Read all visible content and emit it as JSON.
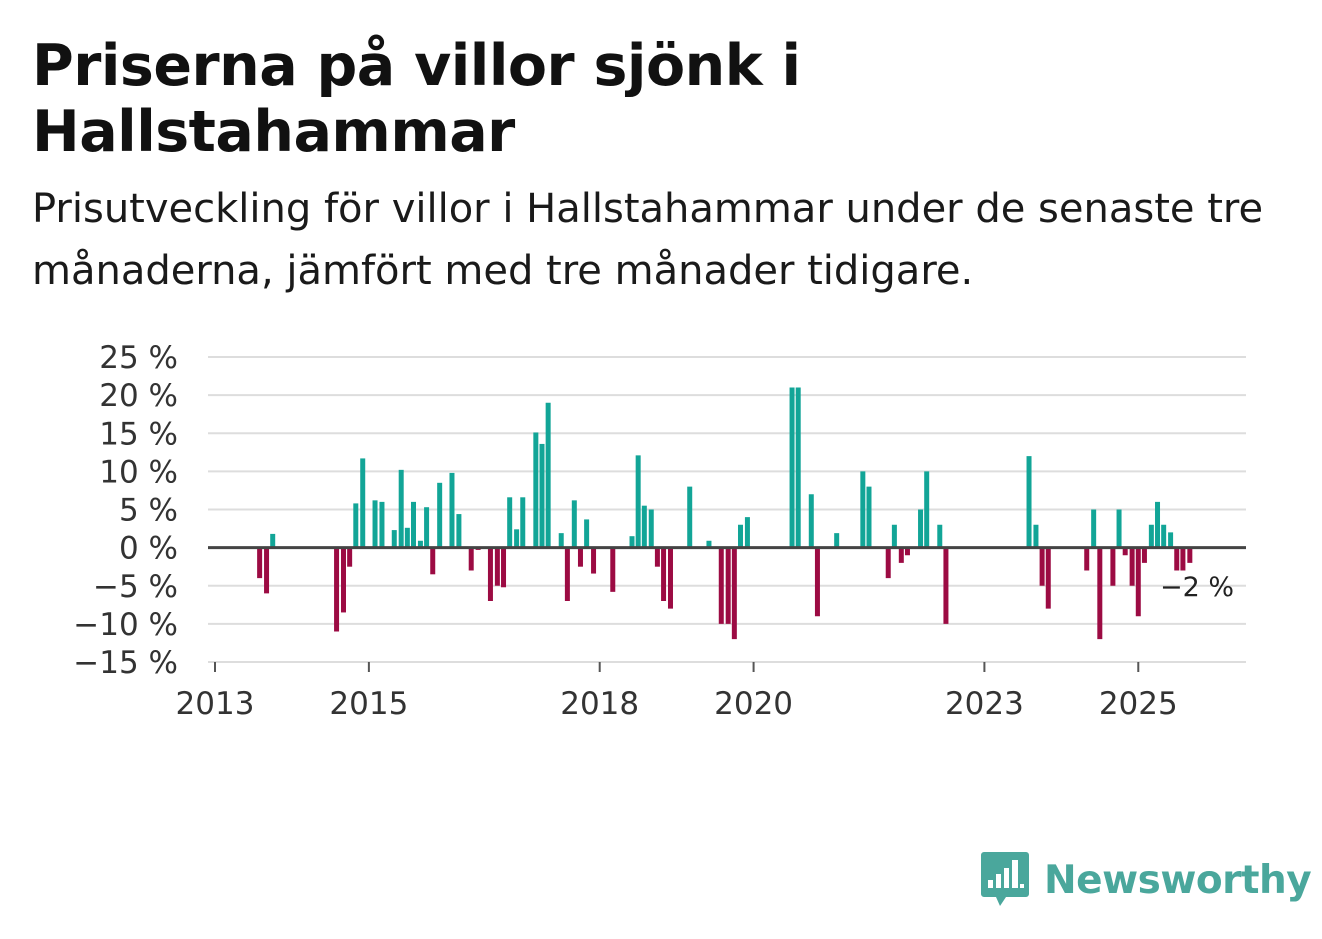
{
  "header": {
    "title": "Priserna på villor sjönk i Hallstahammar",
    "subtitle": "Prisutveckling för villor i Hallstahammar under de senaste tre månaderna, jämfört med tre månader tidigare."
  },
  "brand": {
    "name": "Newsworthy",
    "color": "#4aa79c"
  },
  "colors": {
    "positive": "#12a597",
    "negative": "#9c0b43",
    "zero_line": "#444444",
    "grid": "#dddddd"
  },
  "chart_data": {
    "type": "bar",
    "title": "Priserna på villor sjönk i Hallstahammar",
    "xlabel": "",
    "ylabel": "",
    "ylim": [
      -15,
      25
    ],
    "xlim": [
      2013,
      2026.4
    ],
    "y_ticks": [
      25,
      20,
      15,
      10,
      5,
      0,
      -5,
      -10,
      -15
    ],
    "y_tick_labels": [
      "25 %",
      "20 %",
      "15 %",
      "10 %",
      "5 %",
      "0 %",
      "−5 %",
      "−10 %",
      "−15 %"
    ],
    "x_ticks": [
      2013,
      2015,
      2018,
      2020,
      2023,
      2025
    ],
    "x_tick_labels": [
      "2013",
      "2015",
      "2018",
      "2020",
      "2023",
      "2025"
    ],
    "last_label": "−2 %",
    "series": [
      {
        "name": "Prisutveckling",
        "points": [
          {
            "x": 2013.58,
            "y": -4
          },
          {
            "x": 2013.67,
            "y": -6
          },
          {
            "x": 2013.75,
            "y": 1.8
          },
          {
            "x": 2014.58,
            "y": -11
          },
          {
            "x": 2014.67,
            "y": -8.5
          },
          {
            "x": 2014.75,
            "y": -2.5
          },
          {
            "x": 2014.83,
            "y": 5.8
          },
          {
            "x": 2014.92,
            "y": 11.7
          },
          {
            "x": 2015.08,
            "y": 6.2
          },
          {
            "x": 2015.17,
            "y": 6
          },
          {
            "x": 2015.33,
            "y": 2.3
          },
          {
            "x": 2015.42,
            "y": 10.2
          },
          {
            "x": 2015.5,
            "y": 2.6
          },
          {
            "x": 2015.58,
            "y": 6
          },
          {
            "x": 2015.67,
            "y": 0.9
          },
          {
            "x": 2015.75,
            "y": 5.3
          },
          {
            "x": 2015.83,
            "y": -3.5
          },
          {
            "x": 2015.92,
            "y": 8.5
          },
          {
            "x": 2016.08,
            "y": 9.8
          },
          {
            "x": 2016.17,
            "y": 4.4
          },
          {
            "x": 2016.33,
            "y": -3
          },
          {
            "x": 2016.42,
            "y": -0.3
          },
          {
            "x": 2016.58,
            "y": -7
          },
          {
            "x": 2016.67,
            "y": -5
          },
          {
            "x": 2016.75,
            "y": -5.2
          },
          {
            "x": 2016.83,
            "y": 6.6
          },
          {
            "x": 2016.92,
            "y": 2.4
          },
          {
            "x": 2017.0,
            "y": 6.6
          },
          {
            "x": 2017.17,
            "y": 15.1
          },
          {
            "x": 2017.25,
            "y": 13.6
          },
          {
            "x": 2017.33,
            "y": 19
          },
          {
            "x": 2017.5,
            "y": 1.9
          },
          {
            "x": 2017.58,
            "y": -7
          },
          {
            "x": 2017.67,
            "y": 6.2
          },
          {
            "x": 2017.75,
            "y": -2.5
          },
          {
            "x": 2017.83,
            "y": 3.7
          },
          {
            "x": 2017.92,
            "y": -3.4
          },
          {
            "x": 2018.17,
            "y": -5.8
          },
          {
            "x": 2018.42,
            "y": 1.5
          },
          {
            "x": 2018.5,
            "y": 12.1
          },
          {
            "x": 2018.58,
            "y": 5.5
          },
          {
            "x": 2018.67,
            "y": 5
          },
          {
            "x": 2018.75,
            "y": -2.5
          },
          {
            "x": 2018.83,
            "y": -7
          },
          {
            "x": 2018.92,
            "y": -8
          },
          {
            "x": 2019.17,
            "y": 8
          },
          {
            "x": 2019.42,
            "y": 0.9
          },
          {
            "x": 2019.58,
            "y": -10
          },
          {
            "x": 2019.67,
            "y": -10
          },
          {
            "x": 2019.75,
            "y": -12
          },
          {
            "x": 2019.83,
            "y": 3
          },
          {
            "x": 2019.92,
            "y": 4
          },
          {
            "x": 2020.5,
            "y": 21
          },
          {
            "x": 2020.58,
            "y": 21
          },
          {
            "x": 2020.75,
            "y": 7
          },
          {
            "x": 2020.83,
            "y": -9
          },
          {
            "x": 2021.08,
            "y": 1.9
          },
          {
            "x": 2021.42,
            "y": 10
          },
          {
            "x": 2021.5,
            "y": 8
          },
          {
            "x": 2021.75,
            "y": -4
          },
          {
            "x": 2021.83,
            "y": 3
          },
          {
            "x": 2021.92,
            "y": -2
          },
          {
            "x": 2022.0,
            "y": -1
          },
          {
            "x": 2022.17,
            "y": 5
          },
          {
            "x": 2022.25,
            "y": 10
          },
          {
            "x": 2022.42,
            "y": 3
          },
          {
            "x": 2022.5,
            "y": -10
          },
          {
            "x": 2023.58,
            "y": 12
          },
          {
            "x": 2023.67,
            "y": 3
          },
          {
            "x": 2023.75,
            "y": -5
          },
          {
            "x": 2023.83,
            "y": -8
          },
          {
            "x": 2024.33,
            "y": -3
          },
          {
            "x": 2024.42,
            "y": 5
          },
          {
            "x": 2024.5,
            "y": -12
          },
          {
            "x": 2024.67,
            "y": -5
          },
          {
            "x": 2024.75,
            "y": 5
          },
          {
            "x": 2024.83,
            "y": -1
          },
          {
            "x": 2024.92,
            "y": -5
          },
          {
            "x": 2025.0,
            "y": -9
          },
          {
            "x": 2025.08,
            "y": -2
          },
          {
            "x": 2025.17,
            "y": 3
          },
          {
            "x": 2025.25,
            "y": 6
          },
          {
            "x": 2025.33,
            "y": 3
          },
          {
            "x": 2025.42,
            "y": 2
          },
          {
            "x": 2025.5,
            "y": -3
          },
          {
            "x": 2025.58,
            "y": -3
          },
          {
            "x": 2025.67,
            "y": -2
          }
        ]
      }
    ]
  }
}
